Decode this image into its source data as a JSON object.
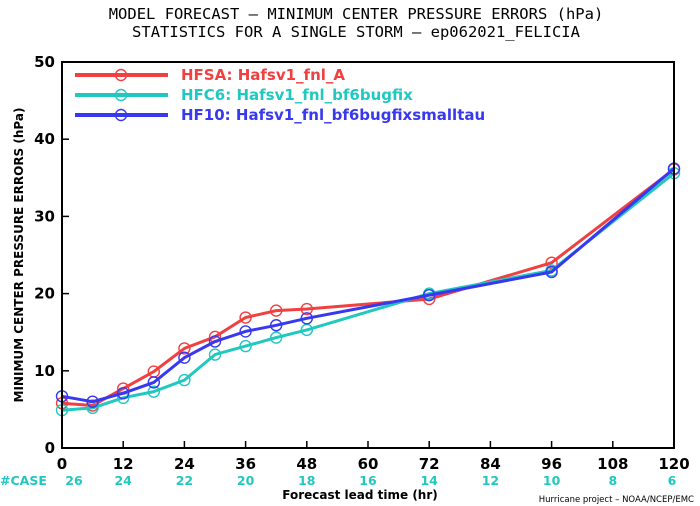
{
  "chart_data": {
    "type": "line",
    "title": "MODEL FORECAST – MINIMUM CENTER PRESSURE ERRORS (hPa)",
    "subtitle": "STATISTICS FOR A SINGLE STORM – ep062021_FELICIA",
    "xlabel": "Forecast lead time (hr)",
    "ylabel": "MINIMUM CENTER PRESSURE ERRORS (hPa)",
    "xlim": [
      0,
      120
    ],
    "ylim": [
      0,
      50
    ],
    "xticks": [
      0,
      12,
      24,
      36,
      48,
      60,
      72,
      84,
      96,
      108,
      120
    ],
    "yticks": [
      0,
      10,
      20,
      30,
      40,
      50
    ],
    "grid": false,
    "legend_position": "top-left",
    "case_label": "#CASE",
    "case_color": "#20c8c0",
    "cases": [
      26,
      24,
      22,
      20,
      18,
      16,
      14,
      12,
      10,
      8,
      6
    ],
    "credit": "Hurricane project – NOAA/NCEP/EMC",
    "series": [
      {
        "name": "HFSA: Hafsv1_fnl_A",
        "color": "#f04040",
        "x": [
          0,
          6,
          12,
          18,
          24,
          30,
          36,
          42,
          48,
          72,
          96,
          120
        ],
        "values": [
          5.8,
          5.5,
          7.7,
          9.9,
          12.9,
          14.4,
          16.9,
          17.8,
          18.0,
          19.3,
          24.0,
          36.1
        ]
      },
      {
        "name": "HFC6: Hafsv1_fnl_bf6bugfix",
        "color": "#20c8c0",
        "x": [
          0,
          6,
          12,
          18,
          24,
          30,
          36,
          42,
          48,
          72,
          96,
          120
        ],
        "values": [
          4.9,
          5.2,
          6.5,
          7.3,
          8.8,
          12.1,
          13.2,
          14.3,
          15.3,
          20.0,
          23.0,
          35.6
        ]
      },
      {
        "name": "HF10: Hafsv1_fnl_bf6bugfixsmalltau",
        "color": "#3838f0",
        "x": [
          0,
          6,
          12,
          18,
          24,
          30,
          36,
          42,
          48,
          72,
          96,
          120
        ],
        "values": [
          6.7,
          6.0,
          7.1,
          8.5,
          11.7,
          13.8,
          15.1,
          15.9,
          16.8,
          19.8,
          22.8,
          36.2
        ]
      }
    ]
  }
}
